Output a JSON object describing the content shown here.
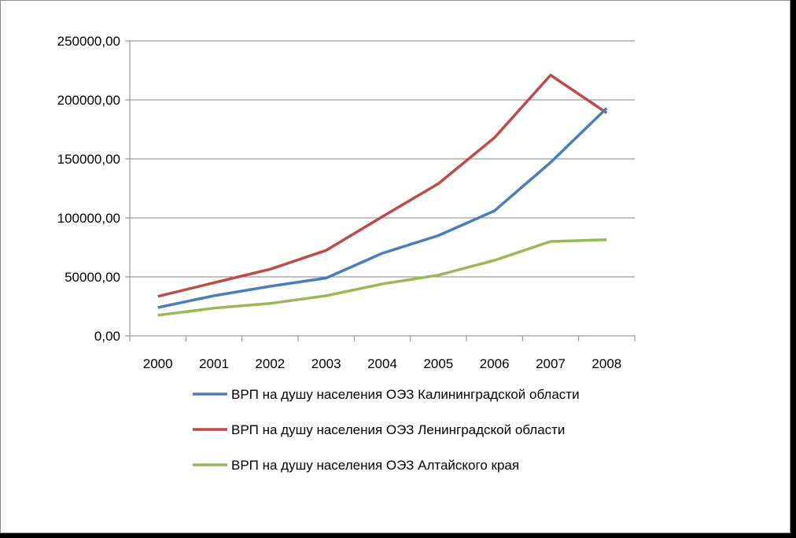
{
  "chart_data": {
    "type": "line",
    "categories": [
      "2000",
      "2001",
      "2002",
      "2003",
      "2004",
      "2005",
      "2006",
      "2007",
      "2008"
    ],
    "ylim": [
      0,
      250000
    ],
    "yticks": [
      0,
      50000,
      100000,
      150000,
      200000,
      250000
    ],
    "ytick_labels": [
      "0,00",
      "50000,00",
      "100000,00",
      "150000,00",
      "200000,00",
      "250000,00"
    ],
    "grid": true,
    "legend_position": "bottom",
    "series": [
      {
        "name": "ВРП на душу населения ОЭЗ Калининградской области",
        "color": "#4a7ebb",
        "values": [
          24000,
          34000,
          42000,
          49000,
          70000,
          85000,
          106000,
          147000,
          193000
        ]
      },
      {
        "name": "ВРП на душу населения ОЭЗ Ленинградской области",
        "color": "#be4b48",
        "values": [
          33500,
          45000,
          56500,
          72500,
          101000,
          129000,
          168000,
          221000,
          189000
        ]
      },
      {
        "name": "ВРП на душу населения ОЭЗ Алтайского края",
        "color": "#98b954",
        "values": [
          17500,
          23500,
          27500,
          34000,
          44000,
          51500,
          64000,
          80000,
          81500
        ]
      }
    ]
  }
}
